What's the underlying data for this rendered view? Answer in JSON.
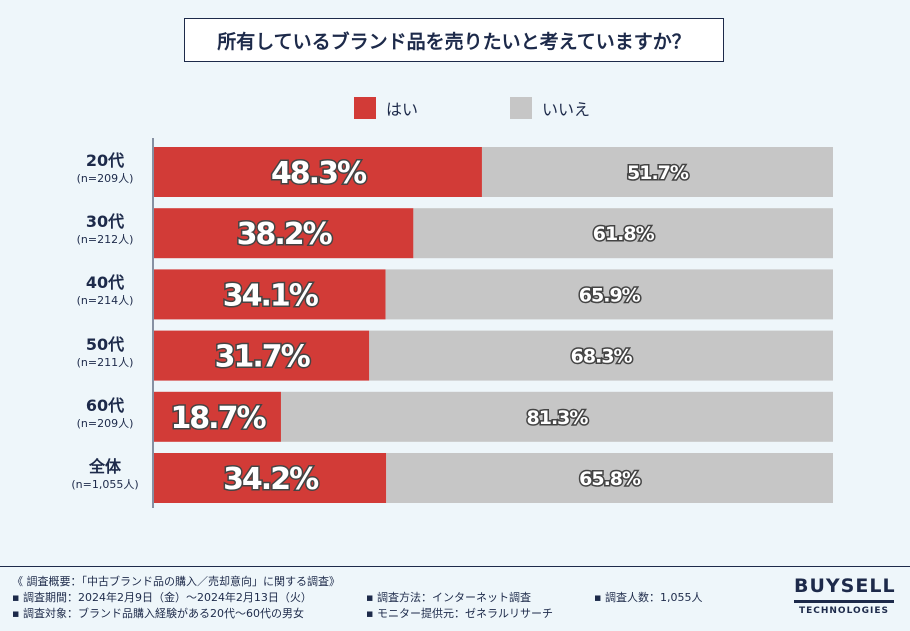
{
  "title": "所有しているブランド品を売りたいと考えていますか？",
  "legend": [
    {
      "label": "はい",
      "color": "#d23b37"
    },
    {
      "label": "いいえ",
      "color": "#c6c6c6"
    }
  ],
  "chart_data": {
    "type": "bar",
    "orientation": "horizontal",
    "stacked": true,
    "title": "所有しているブランド品を売りたいと考えていますか？",
    "categories": [
      "20代",
      "30代",
      "40代",
      "50代",
      "60代",
      "全体"
    ],
    "category_notes": [
      "(n=209人)",
      "(n=212人)",
      "(n=214人)",
      "(n=211人)",
      "(n=209人)",
      "(n=1,055人)"
    ],
    "series": [
      {
        "name": "はい",
        "color": "#d23b37",
        "values": [
          48.3,
          38.2,
          34.1,
          31.7,
          18.7,
          34.2
        ],
        "labels": [
          "48.3%",
          "38.2%",
          "34.1%",
          "31.7%",
          "18.7%",
          "34.2%"
        ]
      },
      {
        "name": "いいえ",
        "color": "#c6c6c6",
        "values": [
          51.7,
          61.8,
          65.9,
          68.3,
          81.3,
          65.8
        ],
        "labels": [
          "51.7%",
          "61.8%",
          "65.9%",
          "68.3%",
          "81.3%",
          "65.8%"
        ]
      }
    ],
    "xlim": [
      0,
      100
    ],
    "xlabel": "",
    "ylabel": "",
    "legend_position": "top"
  },
  "footer": {
    "summary": "《 調査概要：「中古ブランド品の購入／売却意向」に関する調査》",
    "period": "▪ 調査期間：2024年2月9日（金）～2024年2月13日（火）",
    "subject": "▪ 調査対象：ブランド品購入経験がある20代～60代の男女",
    "method": "▪ 調査方法：インターネット調査",
    "provider": "▪ モニター提供元：ゼネラルリサーチ",
    "count": "▪ 調査人数：1,055人"
  },
  "logo": {
    "line1": "BUYSELL",
    "line2": "TECHNOLOGIES"
  }
}
